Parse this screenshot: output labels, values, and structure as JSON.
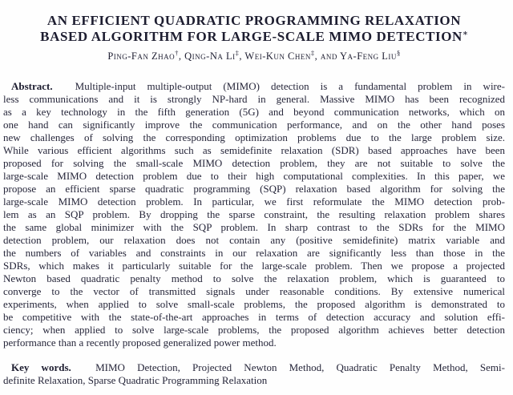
{
  "paper": {
    "title_line1": "AN EFFICIENT QUADRATIC PROGRAMMING RELAXATION",
    "title_line2": "BASED ALGORITHM FOR LARGE-SCALE MIMO DETECTION",
    "title_mark": "∗",
    "authors": [
      {
        "name": "Ping-Fan Zhao",
        "mark": "†"
      },
      {
        "name": "Qing-Na Li",
        "mark": "‡"
      },
      {
        "name": "Wei-Kun Chen",
        "mark": "‡"
      },
      {
        "name": "Ya-Feng Liu",
        "mark": "§"
      }
    ],
    "authors_conjunction": "and",
    "abstract": {
      "label": "Abstract.",
      "lines": [
        "Multiple-input multiple-output (MIMO) detection is a fundamental problem in wire-",
        "less communications and it is strongly NP-hard in general.  Massive MIMO has been recognized",
        "as a key technology in the fifth generation (5G) and beyond communication networks, which on",
        "one hand can significantly improve the communication performance, and on the other hand poses",
        "new challenges of solving the corresponding optimization problems due to the large problem size.",
        "While various efficient algorithms such as semidefinite relaxation (SDR) based approaches have been",
        "proposed for solving the small-scale MIMO detection problem, they are not suitable to solve the",
        "large-scale MIMO detection problem due to their high computational complexities.  In this paper, we",
        "propose an efficient sparse quadratic programming (SQP) relaxation based algorithm for solving the",
        "large-scale MIMO detection problem.  In particular, we first reformulate the MIMO detection prob-",
        "lem as an SQP problem.  By dropping the sparse constraint, the resulting relaxation problem shares",
        "the same global minimizer with the SQP problem.  In sharp contrast to the SDRs for the MIMO",
        "detection problem, our relaxation does not contain any (positive semidefinite) matrix variable and",
        "the numbers of variables and constraints in our relaxation are significantly less than those in the",
        "SDRs, which makes it particularly suitable for the large-scale problem.  Then we propose a projected",
        "Newton based quadratic penalty method to solve the relaxation problem, which is guaranteed to",
        "converge to the vector of transmitted signals under reasonable conditions.  By extensive numerical",
        "experiments, when applied to solve small-scale problems, the proposed algorithm is demonstrated to",
        "be competitive with the state-of-the-art approaches in terms of detection accuracy and solution effi-",
        "ciency; when applied to solve large-scale problems, the proposed algorithm achieves better detection",
        "performance than a recently proposed generalized power method."
      ]
    },
    "keywords": {
      "label": "Key words.",
      "lines": [
        "MIMO Detection, Projected Newton Method, Quadratic Penalty Method, Semi-",
        "definite Relaxation, Sparse Quadratic Programming Relaxation"
      ]
    }
  }
}
